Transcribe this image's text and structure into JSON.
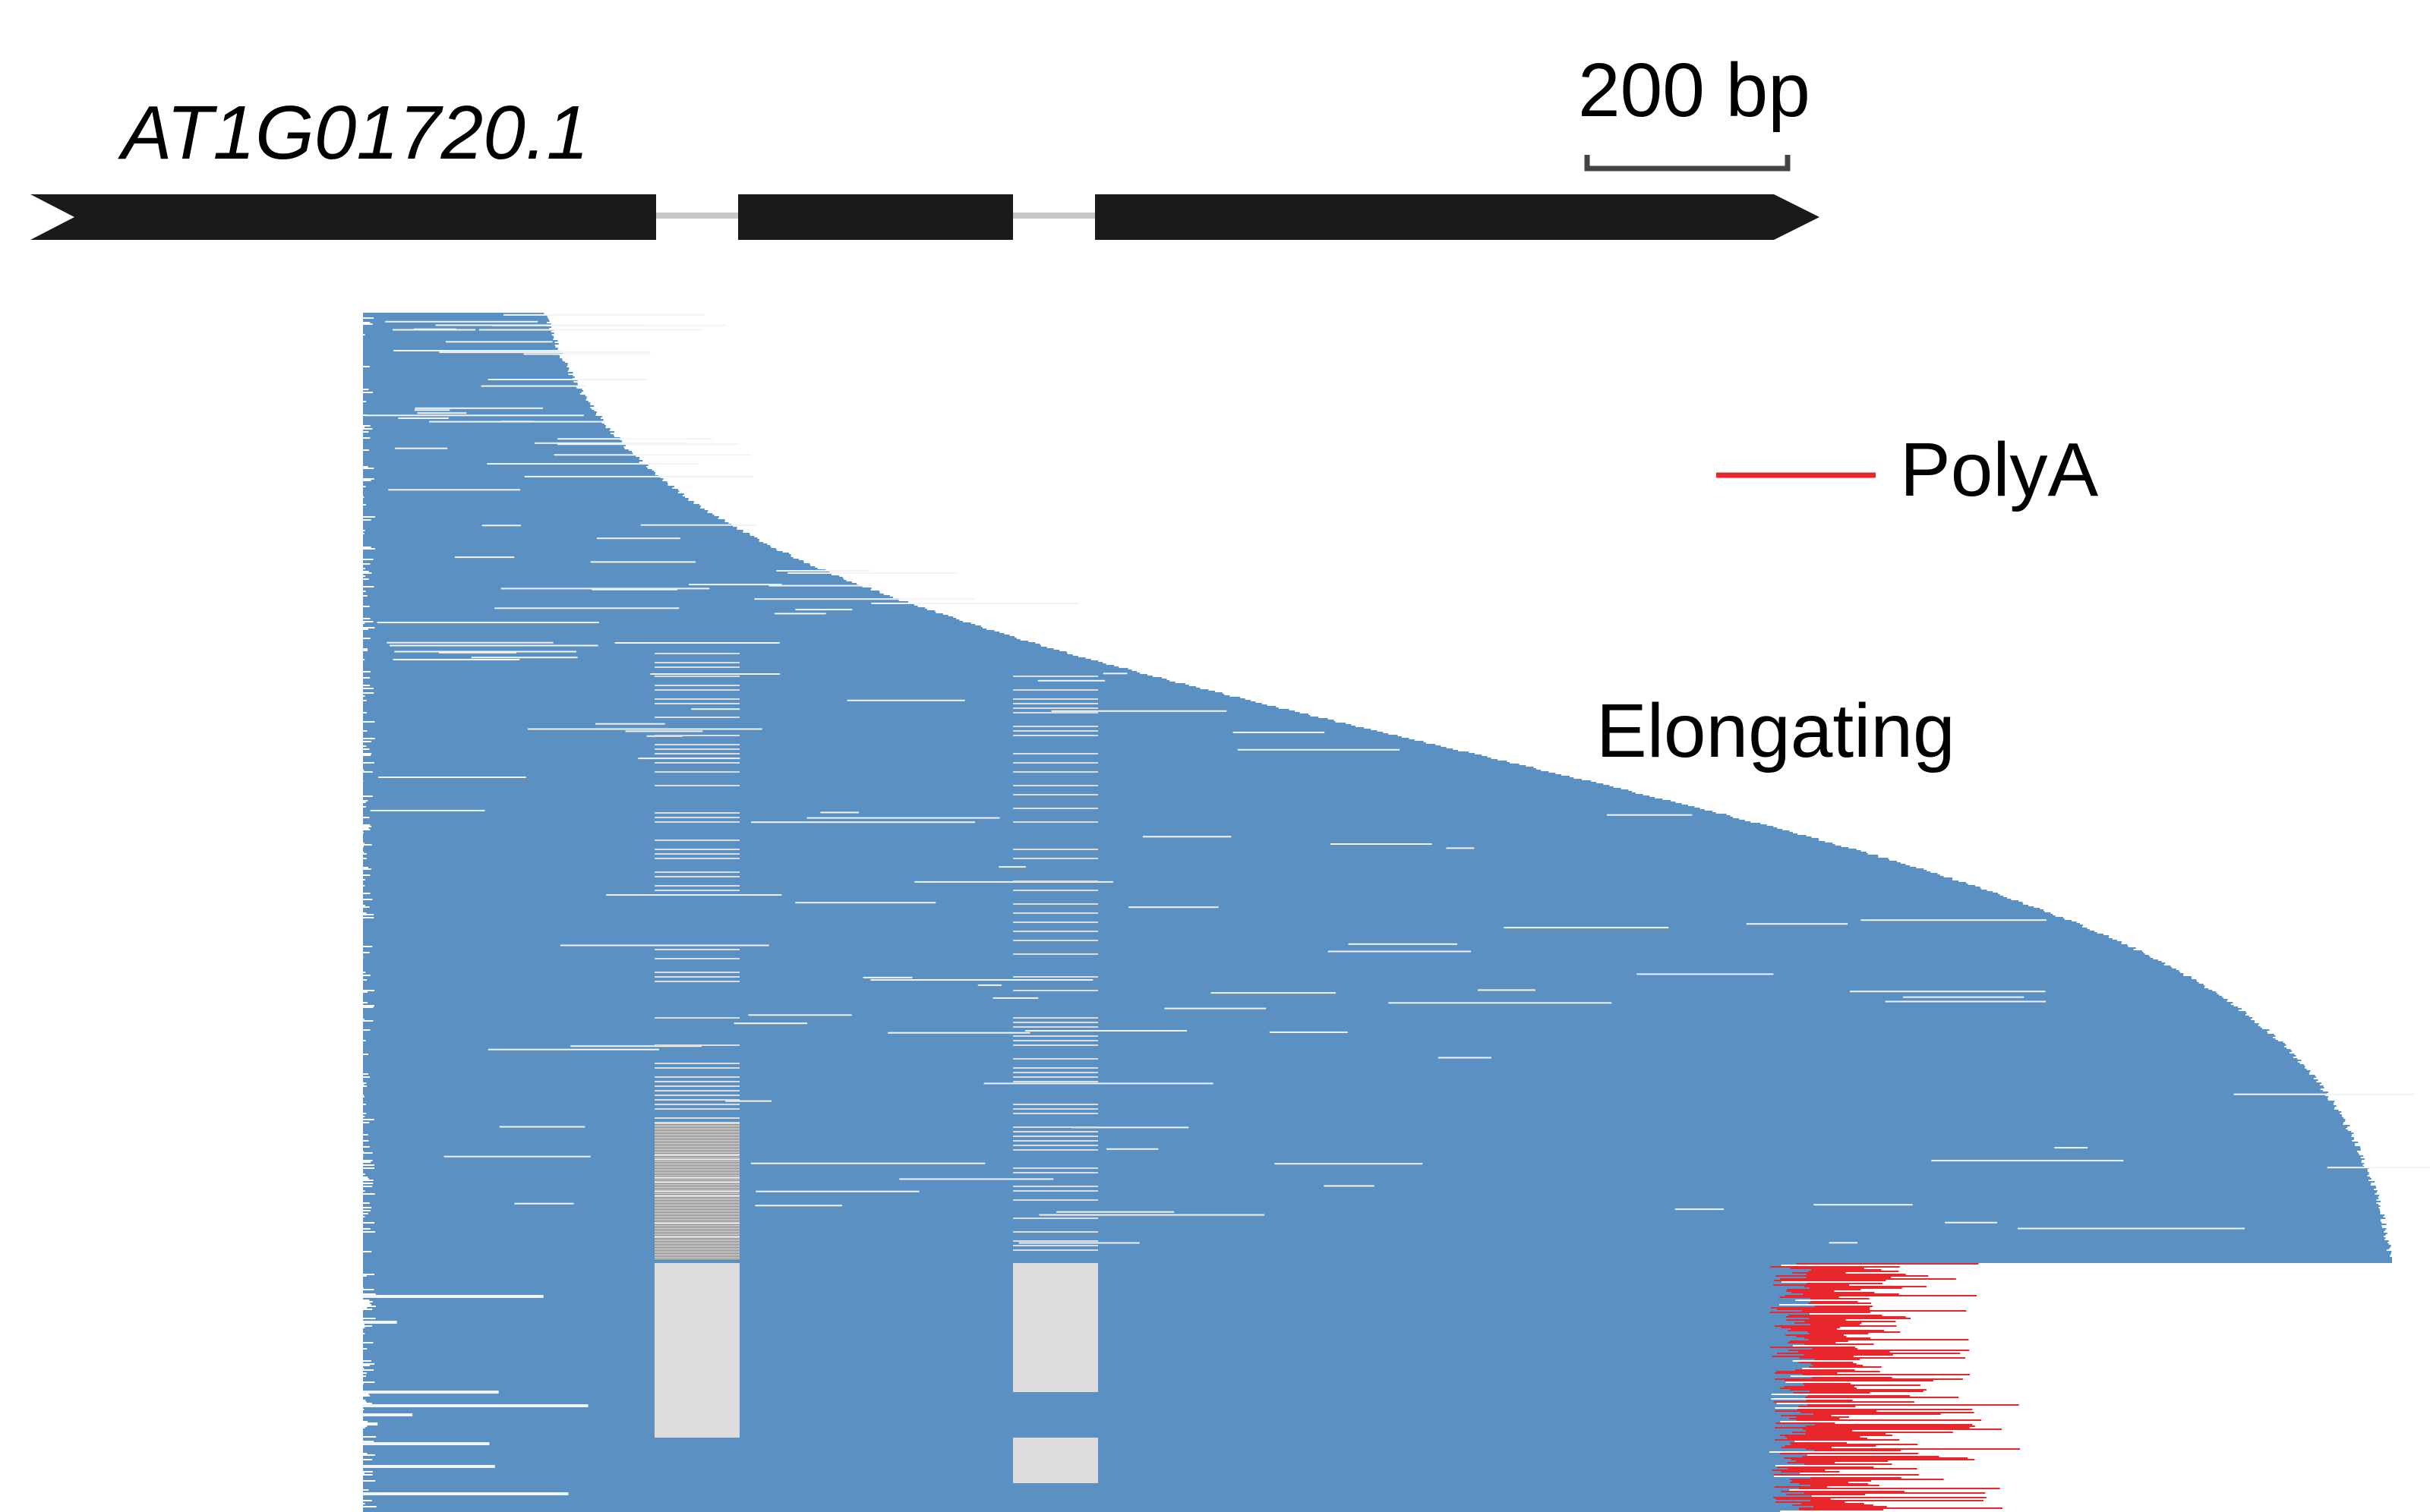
{
  "gene": {
    "name": "AT1G01720.1",
    "strand": "+",
    "exon_color": "#1a1a1a",
    "intron_color": "#c8c8c8",
    "exon_count": 3,
    "intron_count": 2
  },
  "scale_bar": {
    "label": "200 bp",
    "color": "#444444"
  },
  "legend": {
    "items": [
      {
        "label": "PolyA",
        "color": "#e8262b"
      }
    ]
  },
  "annotation": {
    "state_label": "Elongating",
    "arrow_color": "#000000"
  },
  "colors": {
    "read": "#5b90c3",
    "gap": "#f0f4f8",
    "spliced_intron": "#dcdcdc",
    "polya": "#e8262b",
    "background": "#ffffff"
  }
}
